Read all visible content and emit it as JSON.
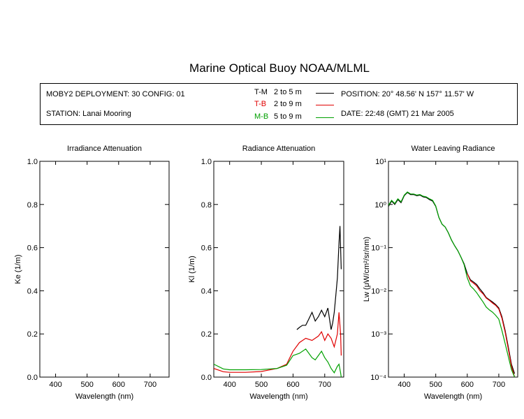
{
  "title": "Marine Optical Buoy NOAA/MLML",
  "info": {
    "deployment": "MOBY2 DEPLOYMENT: 30 CONFIG: 01",
    "station": "STATION: Lanai Mooring",
    "position": "POSITION: 20° 48.56' N   157° 11.57' W",
    "date": "DATE: 22:48 (GMT) 21 Mar 2005",
    "legend": [
      {
        "code": "T-M",
        "range": "2 to 5  m",
        "color": "#000000"
      },
      {
        "code": "T-B",
        "range": "2 to 9  m",
        "color": "#e00000"
      },
      {
        "code": "M-B",
        "range": "5 to 9  m",
        "color": "#00a000"
      }
    ]
  },
  "chart_data": [
    {
      "type": "line",
      "title": "Irradiance Attenuation",
      "xlabel": "Wavelength (nm)",
      "ylabel": "Ke  (1/m)",
      "xlim": [
        350,
        760
      ],
      "ylim": [
        0,
        1
      ],
      "xticks": [
        "400",
        "500",
        "600",
        "700"
      ],
      "yticks": [
        "0.0",
        "0.2",
        "0.4",
        "0.6",
        "0.8",
        "1.0"
      ],
      "series": []
    },
    {
      "type": "line",
      "title": "Radiance Attenuation",
      "xlabel": "Wavelength (nm)",
      "ylabel": "Kl  (1/m)",
      "xlim": [
        350,
        760
      ],
      "ylim": [
        0,
        1
      ],
      "xticks": [
        "400",
        "500",
        "600",
        "700"
      ],
      "yticks": [
        "0.0",
        "0.2",
        "0.4",
        "0.6",
        "0.8",
        "1.0"
      ],
      "series": [
        {
          "color": "#000000",
          "x": [
            612,
            620,
            630,
            640,
            650,
            660,
            670,
            680,
            690,
            700,
            710,
            715,
            720,
            725,
            730,
            735,
            740,
            745,
            748,
            752
          ],
          "y": [
            0.22,
            0.23,
            0.24,
            0.24,
            0.27,
            0.3,
            0.26,
            0.28,
            0.31,
            0.28,
            0.32,
            0.27,
            0.22,
            0.25,
            0.3,
            0.38,
            0.46,
            0.62,
            0.7,
            0.5
          ]
        },
        {
          "color": "#e00000",
          "x": [
            350,
            380,
            400,
            450,
            500,
            550,
            580,
            600,
            620,
            640,
            660,
            680,
            690,
            700,
            710,
            720,
            730,
            740,
            745,
            750,
            752
          ],
          "y": [
            0.04,
            0.025,
            0.022,
            0.022,
            0.026,
            0.04,
            0.06,
            0.12,
            0.16,
            0.18,
            0.17,
            0.19,
            0.21,
            0.17,
            0.2,
            0.18,
            0.14,
            0.2,
            0.3,
            0.2,
            0.1
          ]
        },
        {
          "color": "#00a000",
          "x": [
            350,
            380,
            400,
            450,
            500,
            550,
            580,
            600,
            620,
            640,
            660,
            670,
            680,
            690,
            700,
            710,
            720,
            730,
            740,
            745,
            750,
            752
          ],
          "y": [
            0.06,
            0.038,
            0.034,
            0.034,
            0.035,
            0.04,
            0.055,
            0.1,
            0.11,
            0.13,
            0.09,
            0.08,
            0.1,
            0.12,
            0.09,
            0.07,
            0.04,
            0.02,
            0.05,
            0.06,
            0.02,
            0.0
          ]
        }
      ]
    },
    {
      "type": "line",
      "title": "Water Leaving Radiance",
      "xlabel": "Wavelength (nm)",
      "ylabel": "Lw  (μW/cm²/sr/nm)",
      "yscale": "log",
      "xlim": [
        350,
        760
      ],
      "ylim": [
        0.0001,
        10
      ],
      "xticks": [
        "400",
        "500",
        "600",
        "700"
      ],
      "yticks": [
        "10⁻⁴",
        "10⁻³",
        "10⁻²",
        "10⁻¹",
        "10⁰",
        "10¹"
      ],
      "series": [
        {
          "color": "#000000",
          "x": [
            350,
            360,
            370,
            380,
            390,
            400,
            410,
            420,
            430,
            440,
            450,
            460,
            470,
            480,
            490,
            500,
            510,
            520,
            530,
            540,
            550,
            560,
            570,
            580,
            590,
            600,
            610,
            620,
            630,
            640,
            650,
            660,
            670,
            680,
            690,
            700,
            710,
            720,
            730,
            740,
            750
          ],
          "y": [
            0.9,
            1.2,
            1.0,
            1.3,
            1.1,
            1.6,
            1.9,
            1.7,
            1.7,
            1.6,
            1.65,
            1.5,
            1.45,
            1.3,
            1.2,
            0.9,
            0.5,
            0.35,
            0.3,
            0.22,
            0.15,
            0.11,
            0.085,
            0.06,
            0.042,
            0.025,
            0.018,
            0.016,
            0.014,
            0.011,
            0.009,
            0.007,
            0.0062,
            0.0055,
            0.0048,
            0.004,
            0.0025,
            0.0012,
            0.0005,
            0.0002,
            0.00012
          ]
        },
        {
          "color": "#e00000",
          "x": [
            600,
            610,
            620,
            630,
            640,
            650,
            660,
            670,
            680,
            690,
            700,
            710,
            720,
            730,
            740,
            750
          ],
          "y": [
            0.025,
            0.017,
            0.015,
            0.013,
            0.01,
            0.0085,
            0.0068,
            0.006,
            0.0052,
            0.0046,
            0.0038,
            0.0023,
            0.0011,
            0.00045,
            0.00018,
            0.0001
          ]
        },
        {
          "color": "#00a000",
          "x": [
            350,
            360,
            370,
            380,
            390,
            400,
            410,
            420,
            430,
            440,
            450,
            460,
            470,
            480,
            490,
            500,
            510,
            520,
            530,
            540,
            550,
            560,
            570,
            580,
            590,
            600,
            610,
            620,
            630,
            640,
            650,
            660,
            670,
            680,
            690,
            700,
            710,
            720,
            730,
            740,
            750
          ],
          "y": [
            0.95,
            1.25,
            1.05,
            1.35,
            1.15,
            1.65,
            1.95,
            1.75,
            1.75,
            1.65,
            1.7,
            1.55,
            1.5,
            1.35,
            1.25,
            0.92,
            0.5,
            0.35,
            0.3,
            0.22,
            0.15,
            0.11,
            0.085,
            0.06,
            0.04,
            0.02,
            0.013,
            0.011,
            0.009,
            0.007,
            0.0055,
            0.0042,
            0.0036,
            0.0032,
            0.0027,
            0.0022,
            0.0012,
            0.0006,
            0.0003,
            0.00015,
            0.0001
          ]
        }
      ]
    }
  ]
}
